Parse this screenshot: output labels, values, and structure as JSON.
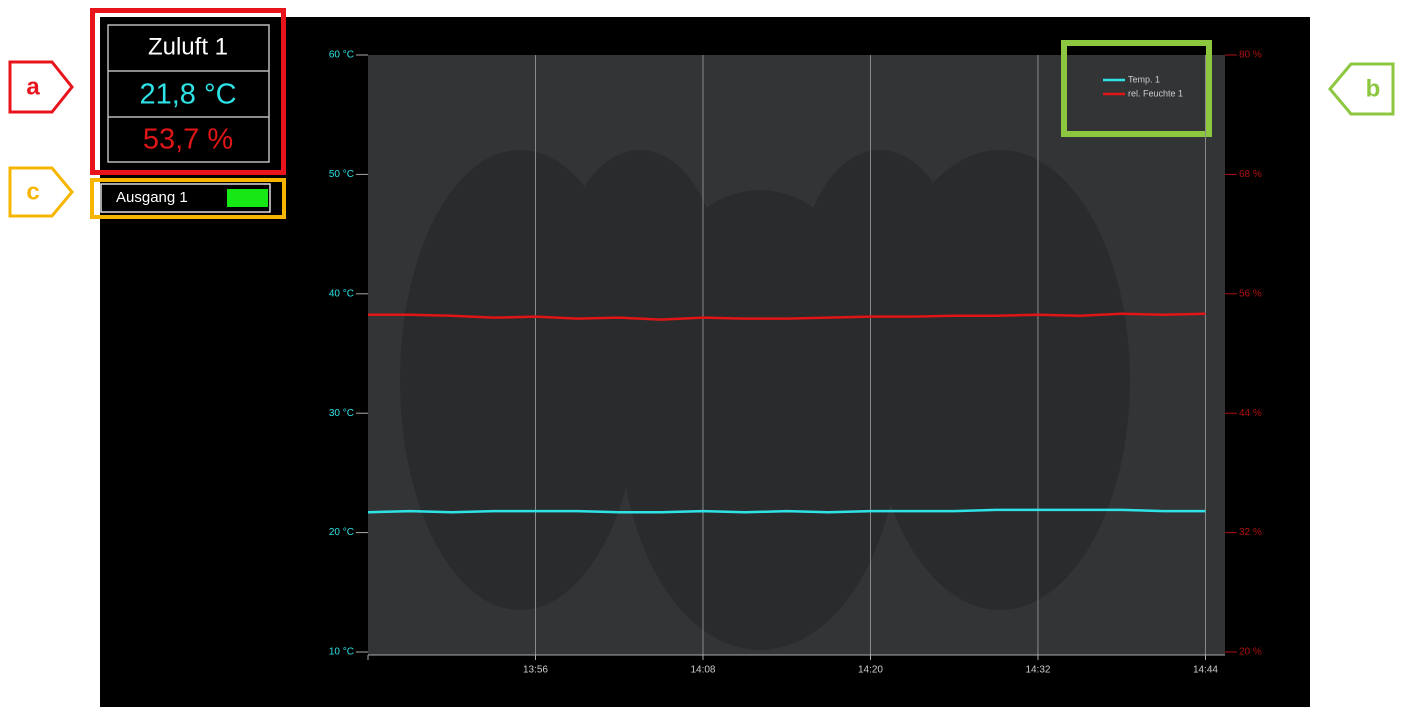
{
  "annotations": {
    "a": "a",
    "b": "b",
    "c": "c"
  },
  "panel": {
    "title": "Zuluft 1",
    "temperature": "21,8 °C",
    "humidity": "53,7 %",
    "output": "Ausgang 1"
  },
  "chart_data": {
    "type": "line",
    "x": [
      824,
      827,
      830,
      833,
      836,
      839,
      842,
      845,
      848,
      851,
      854,
      857,
      860,
      863,
      866,
      869,
      872,
      875,
      878,
      881,
      884
    ],
    "xlim": [
      824,
      885.4
    ],
    "xticks": [
      {
        "value": 836,
        "label": "13:56"
      },
      {
        "value": 848,
        "label": "14:08"
      },
      {
        "value": 860,
        "label": "14:20"
      },
      {
        "value": 872,
        "label": "14:32"
      },
      {
        "value": 884,
        "label": "14:44"
      }
    ],
    "ylim": [
      10,
      60
    ],
    "yticks": [
      {
        "value": 10,
        "label": "10 °C"
      },
      {
        "value": 20,
        "label": "20 °C"
      },
      {
        "value": 30,
        "label": "30 °C"
      },
      {
        "value": 40,
        "label": "40 °C"
      },
      {
        "value": 50,
        "label": "50 °C"
      },
      {
        "value": 60,
        "label": "60 °C"
      }
    ],
    "y2lim": [
      20,
      80
    ],
    "y2ticks": [
      {
        "value": 20,
        "label": "20 %"
      },
      {
        "value": 32,
        "label": "32 %"
      },
      {
        "value": 44,
        "label": "44 %"
      },
      {
        "value": 56,
        "label": "56 %"
      },
      {
        "value": 68,
        "label": "68 %"
      },
      {
        "value": 80,
        "label": "80 %"
      }
    ],
    "grid": true,
    "legend": "upper right",
    "series": [
      {
        "name": "Temp. 1",
        "color": "#2de3e6",
        "values": [
          21.7,
          21.8,
          21.7,
          21.8,
          21.8,
          21.8,
          21.7,
          21.7,
          21.8,
          21.7,
          21.8,
          21.7,
          21.8,
          21.8,
          21.8,
          21.9,
          21.9,
          21.9,
          21.9,
          21.8,
          21.8
        ]
      },
      {
        "name": "rel. Feuchte 1",
        "color": "#e01515",
        "axis": "y2",
        "values": [
          53.9,
          53.9,
          53.8,
          53.6,
          53.7,
          53.5,
          53.6,
          53.4,
          53.6,
          53.5,
          53.5,
          53.6,
          53.7,
          53.7,
          53.8,
          53.8,
          53.9,
          53.8,
          54.0,
          53.9,
          54.0
        ]
      }
    ]
  }
}
